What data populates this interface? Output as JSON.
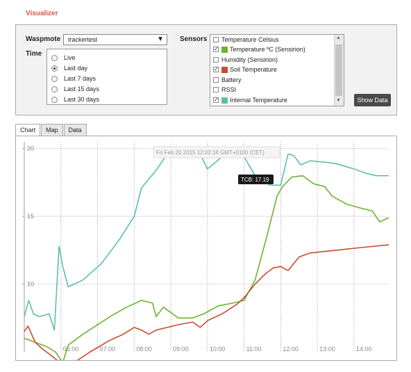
{
  "page_title": "Visualizer",
  "waspmote": {
    "label": "Waspmote",
    "selected": "trackertest",
    "arrow": "▼"
  },
  "time": {
    "label": "Time",
    "options": [
      {
        "label": "Live",
        "checked": false
      },
      {
        "label": "Last day",
        "checked": true
      },
      {
        "label": "Last 7 days",
        "checked": false
      },
      {
        "label": "Last 15 days",
        "checked": false
      },
      {
        "label": "Last 30 days",
        "checked": false
      }
    ]
  },
  "sensors": {
    "label": "Sensors",
    "items": [
      {
        "label": "Temperature Celsius",
        "checked": false,
        "color": ""
      },
      {
        "label": "Temperature ºC (Sensirion)",
        "checked": true,
        "color": "#6ab42e"
      },
      {
        "label": "Humidity (Sensirion)",
        "checked": false,
        "color": ""
      },
      {
        "label": "Soil Temperature",
        "checked": true,
        "color": "#cc4a2e"
      },
      {
        "label": "Battery",
        "checked": false,
        "color": ""
      },
      {
        "label": "RSSI",
        "checked": false,
        "color": ""
      },
      {
        "label": "Internal Temperature",
        "checked": true,
        "color": "#5bbfad"
      }
    ]
  },
  "show_data_button": "Show Data",
  "tabs": [
    {
      "label": "Chart",
      "active": true
    },
    {
      "label": "Map",
      "active": false
    },
    {
      "label": "Data",
      "active": false
    }
  ],
  "chart_data": {
    "type": "line",
    "hover_date": "Fri Feb 20 2015 12:02:18 GMT+0100 (CET)",
    "tooltip": "TCB: 17.19",
    "x_ticks": [
      "06:00",
      "07:00",
      "08:00",
      "09:00",
      "10:00",
      "11:00",
      "12:00",
      "13:00",
      "14:00"
    ],
    "y_ticks": [
      20,
      15,
      10
    ],
    "xlim_hours": [
      5.0,
      14.95
    ],
    "ylim": [
      5,
      20.5
    ],
    "series": [
      {
        "color": "#5bbfad",
        "points": [
          [
            5.0,
            7.6
          ],
          [
            5.12,
            8.8
          ],
          [
            5.25,
            7.8
          ],
          [
            5.4,
            7.6
          ],
          [
            5.55,
            7.7
          ],
          [
            5.68,
            7.8
          ],
          [
            5.82,
            6.6
          ],
          [
            5.95,
            12.8
          ],
          [
            6.05,
            11.3
          ],
          [
            6.2,
            9.8
          ],
          [
            6.6,
            10.3
          ],
          [
            7.1,
            11.5
          ],
          [
            7.6,
            13.3
          ],
          [
            8.0,
            15.0
          ],
          [
            8.2,
            17.1
          ],
          [
            8.6,
            18.4
          ],
          [
            9.0,
            20.0
          ],
          [
            9.4,
            19.8
          ],
          [
            9.8,
            19.6
          ],
          [
            10.0,
            18.5
          ],
          [
            10.4,
            19.4
          ],
          [
            10.7,
            20.1
          ],
          [
            11.0,
            19.4
          ],
          [
            11.3,
            18.0
          ],
          [
            11.7,
            17.3
          ],
          [
            12.0,
            17.3
          ],
          [
            12.2,
            19.6
          ],
          [
            12.35,
            19.5
          ],
          [
            12.55,
            18.8
          ],
          [
            12.8,
            19.1
          ],
          [
            13.2,
            19.0
          ],
          [
            13.5,
            18.9
          ],
          [
            14.0,
            18.5
          ],
          [
            14.3,
            18.2
          ],
          [
            14.6,
            18.0
          ],
          [
            14.95,
            18.0
          ]
        ]
      },
      {
        "color": "#6ab42e",
        "points": [
          [
            5.0,
            6.0
          ],
          [
            5.3,
            5.7
          ],
          [
            5.6,
            5.4
          ],
          [
            5.85,
            5.0
          ],
          [
            6.05,
            4.2
          ],
          [
            6.2,
            5.5
          ],
          [
            6.6,
            6.3
          ],
          [
            7.0,
            7.0
          ],
          [
            7.4,
            7.7
          ],
          [
            7.8,
            8.3
          ],
          [
            8.2,
            8.8
          ],
          [
            8.5,
            8.6
          ],
          [
            8.6,
            7.6
          ],
          [
            8.8,
            8.3
          ],
          [
            9.2,
            7.5
          ],
          [
            9.6,
            7.5
          ],
          [
            9.9,
            7.8
          ],
          [
            10.3,
            8.4
          ],
          [
            10.7,
            8.6
          ],
          [
            11.0,
            8.8
          ],
          [
            11.3,
            10.3
          ],
          [
            11.6,
            13.3
          ],
          [
            11.9,
            16.5
          ],
          [
            12.05,
            17.2
          ],
          [
            12.3,
            17.9
          ],
          [
            12.6,
            18.0
          ],
          [
            12.9,
            17.4
          ],
          [
            13.2,
            17.2
          ],
          [
            13.4,
            16.5
          ],
          [
            13.8,
            15.9
          ],
          [
            14.2,
            15.6
          ],
          [
            14.5,
            15.4
          ],
          [
            14.7,
            14.6
          ],
          [
            14.95,
            14.9
          ]
        ]
      },
      {
        "color": "#cc4a2e",
        "points": [
          [
            5.0,
            6.5
          ],
          [
            5.1,
            6.9
          ],
          [
            5.3,
            5.7
          ],
          [
            5.5,
            5.2
          ],
          [
            5.8,
            4.6
          ],
          [
            6.05,
            4.0
          ],
          [
            6.3,
            4.1
          ],
          [
            6.8,
            5.0
          ],
          [
            7.3,
            5.8
          ],
          [
            7.7,
            6.3
          ],
          [
            8.0,
            6.8
          ],
          [
            8.2,
            6.6
          ],
          [
            8.4,
            6.3
          ],
          [
            8.6,
            6.6
          ],
          [
            8.9,
            6.8
          ],
          [
            9.2,
            7.0
          ],
          [
            9.6,
            7.2
          ],
          [
            9.8,
            6.8
          ],
          [
            10.0,
            7.3
          ],
          [
            10.4,
            7.8
          ],
          [
            10.8,
            8.5
          ],
          [
            11.0,
            9.0
          ],
          [
            11.3,
            10.0
          ],
          [
            11.6,
            10.8
          ],
          [
            11.8,
            11.2
          ],
          [
            12.0,
            11.3
          ],
          [
            12.2,
            11.0
          ],
          [
            12.5,
            12.0
          ],
          [
            12.8,
            12.3
          ],
          [
            13.5,
            12.5
          ],
          [
            14.2,
            12.7
          ],
          [
            14.95,
            12.9
          ]
        ]
      }
    ]
  }
}
